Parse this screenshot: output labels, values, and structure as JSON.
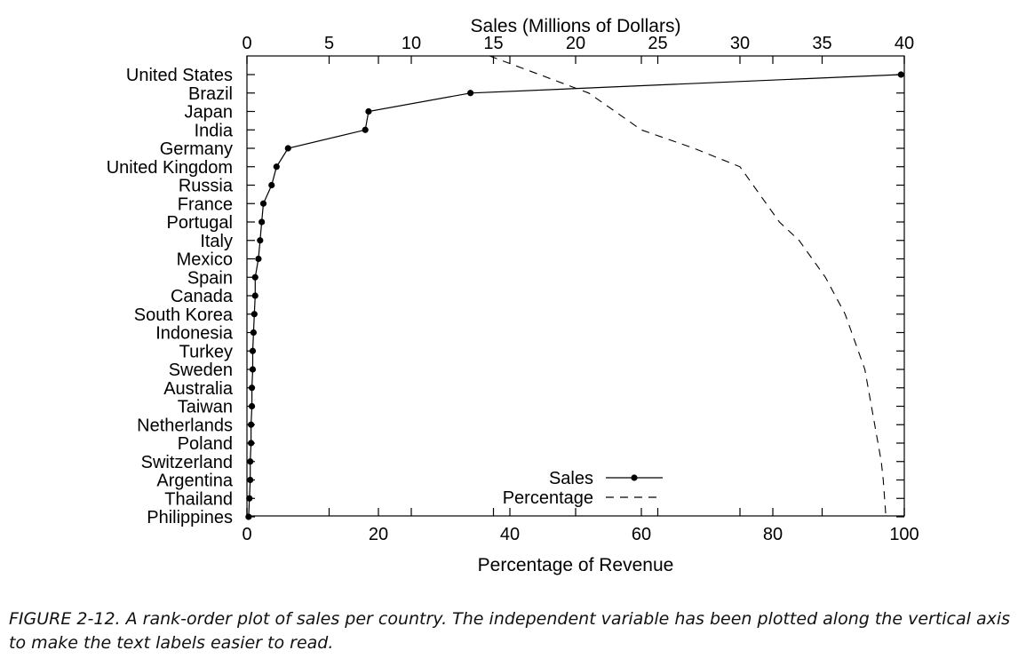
{
  "chart_data": {
    "type": "line",
    "orientation": "horizontal-rank",
    "categories": [
      "United States",
      "Brazil",
      "Japan",
      "India",
      "Germany",
      "United Kingdom",
      "Russia",
      "France",
      "Portugal",
      "Italy",
      "Mexico",
      "Spain",
      "Canada",
      "South Korea",
      "Indonesia",
      "Turkey",
      "Sweden",
      "Australia",
      "Taiwan",
      "Netherlands",
      "Poland",
      "Switzerland",
      "Argentina",
      "Thailand",
      "Philippines"
    ],
    "x_top_label": "Sales (Millions of Dollars)",
    "x_top_range": [
      0,
      40
    ],
    "x_top_ticks": [
      0,
      5,
      10,
      15,
      20,
      25,
      30,
      35,
      40
    ],
    "x_bottom_label": "Percentage of Revenue",
    "x_bottom_range": [
      0,
      100
    ],
    "x_bottom_ticks": [
      0,
      20,
      40,
      60,
      80,
      100
    ],
    "grid": false,
    "legend_position": "bottom-center",
    "series": [
      {
        "name": "Sales",
        "style": "solid-with-points",
        "axis": "top",
        "values": [
          39.8,
          13.6,
          7.4,
          7.2,
          2.5,
          1.8,
          1.5,
          1.0,
          0.9,
          0.8,
          0.7,
          0.5,
          0.5,
          0.45,
          0.4,
          0.35,
          0.35,
          0.3,
          0.3,
          0.25,
          0.25,
          0.2,
          0.2,
          0.15,
          0.1
        ]
      },
      {
        "name": "Percentage",
        "style": "dashed",
        "axis": "bottom",
        "values": [
          44.5,
          52,
          56,
          60,
          68,
          75,
          77,
          79,
          81,
          84,
          86,
          88,
          89.5,
          91,
          92,
          93,
          94,
          94.5,
          95,
          95.5,
          96,
          96.5,
          96.8,
          97,
          97.2
        ],
        "clip_top": true
      }
    ]
  },
  "caption": "FIGURE 2-12. A rank-order plot of sales per country. The independent variable has been plotted along the vertical axis to make the text labels easier to read."
}
